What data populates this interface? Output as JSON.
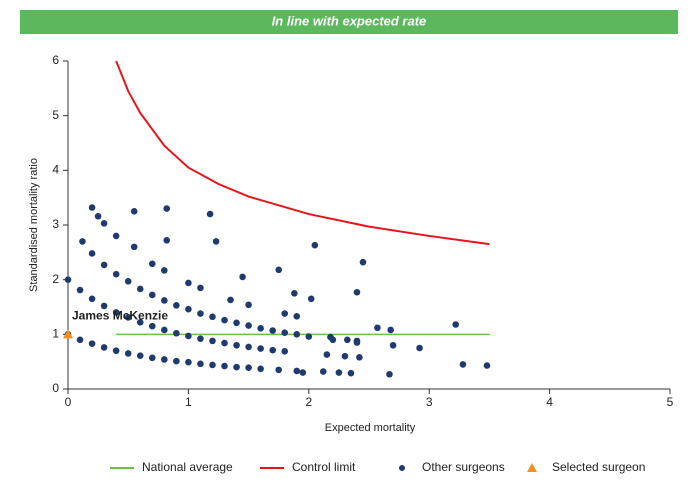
{
  "chart_data": {
    "type": "scatter",
    "title": "In line with expected rate",
    "title_background": "#5cb85c",
    "x_label": "Expected mortality",
    "y_label": "Standardised mortality ratio",
    "xlim": [
      0,
      5
    ],
    "xticks": [
      0,
      1,
      2,
      3,
      4,
      5
    ],
    "ylim": [
      0,
      6
    ],
    "yticks": [
      0,
      1,
      2,
      3,
      4,
      5,
      6
    ],
    "grid": false,
    "legend": "bottom",
    "series": [
      {
        "name": "National average",
        "kind": "line",
        "color": "#6cc04a",
        "x": [
          0.4,
          3.5
        ],
        "values": [
          1,
          1
        ]
      },
      {
        "name": "Control limit",
        "kind": "line",
        "color": "#e8141b",
        "x": [
          0.4,
          0.5,
          0.6,
          0.8,
          1,
          1.25,
          1.5,
          2,
          2.5,
          3,
          3.5
        ],
        "values": [
          6,
          5.45,
          5.05,
          4.45,
          4.05,
          3.75,
          3.52,
          3.2,
          2.97,
          2.8,
          2.65
        ]
      },
      {
        "name": "Other surgeons",
        "kind": "dots",
        "color": "#1f3a6e",
        "x": [
          0,
          0.1,
          0.2,
          0.3,
          0.4,
          0.5,
          0.6,
          0.7,
          0.8,
          0.9,
          1.0,
          1.1,
          1.2,
          1.3,
          1.4,
          1.5,
          1.6,
          1.75,
          1.9,
          0,
          0.1,
          0.2,
          0.3,
          0.4,
          0.5,
          0.6,
          0.7,
          0.8,
          0.9,
          1.0,
          1.1,
          1.2,
          1.3,
          1.4,
          1.5,
          1.6,
          1.7,
          1.8,
          0.2,
          0.3,
          0.4,
          0.5,
          0.6,
          0.7,
          0.8,
          0.9,
          1.0,
          1.1,
          1.2,
          1.3,
          1.4,
          1.5,
          1.6,
          1.7,
          1.8,
          1.9,
          2.0,
          2.2,
          2.4,
          0.25,
          0.3,
          0.4,
          0.55,
          0.7,
          0.8,
          1.0,
          1.1,
          1.35,
          1.5,
          1.8,
          1.9,
          0.2,
          0.55,
          0.82,
          1.18,
          1.23,
          0.82,
          0.12,
          2.05,
          2.45,
          1.75,
          1.45,
          2.4,
          1.88,
          2.02,
          2.57,
          2.68,
          3.22,
          2.7,
          2.92,
          3.28,
          3.48,
          2.67,
          2.35,
          2.25,
          2.12,
          2.3,
          2.42,
          2.32,
          2.4,
          2.15,
          2.18,
          1.95
        ],
        "values": [
          1,
          0.9,
          0.83,
          0.76,
          0.7,
          0.65,
          0.61,
          0.57,
          0.54,
          0.51,
          0.49,
          0.46,
          0.44,
          0.42,
          0.4,
          0.39,
          0.37,
          0.35,
          0.33,
          2,
          1.81,
          1.65,
          1.52,
          1.4,
          1.31,
          1.22,
          1.15,
          1.08,
          1.02,
          0.97,
          0.92,
          0.88,
          0.84,
          0.8,
          0.77,
          0.74,
          0.71,
          0.69,
          2.48,
          2.27,
          2.1,
          1.97,
          1.83,
          1.72,
          1.62,
          1.53,
          1.46,
          1.38,
          1.32,
          1.26,
          1.21,
          1.16,
          1.11,
          1.07,
          1.03,
          1.0,
          0.96,
          0.9,
          0.85,
          3.16,
          3.03,
          2.8,
          2.6,
          2.29,
          2.17,
          1.94,
          1.85,
          1.63,
          1.54,
          1.38,
          1.33,
          3.32,
          3.25,
          3.3,
          3.2,
          2.7,
          2.72,
          2.7,
          2.63,
          2.32,
          2.18,
          2.05,
          1.77,
          1.75,
          1.65,
          1.12,
          1.08,
          1.18,
          0.8,
          0.75,
          0.45,
          0.43,
          0.27,
          0.29,
          0.3,
          0.32,
          0.6,
          0.58,
          0.9,
          0.88,
          0.63,
          0.95,
          0.3
        ]
      },
      {
        "name": "Selected surgeon",
        "kind": "triangle",
        "color": "#f0901e",
        "x": [
          0
        ],
        "values": [
          1
        ],
        "point_labels": [
          "James McKenzie"
        ]
      }
    ]
  }
}
